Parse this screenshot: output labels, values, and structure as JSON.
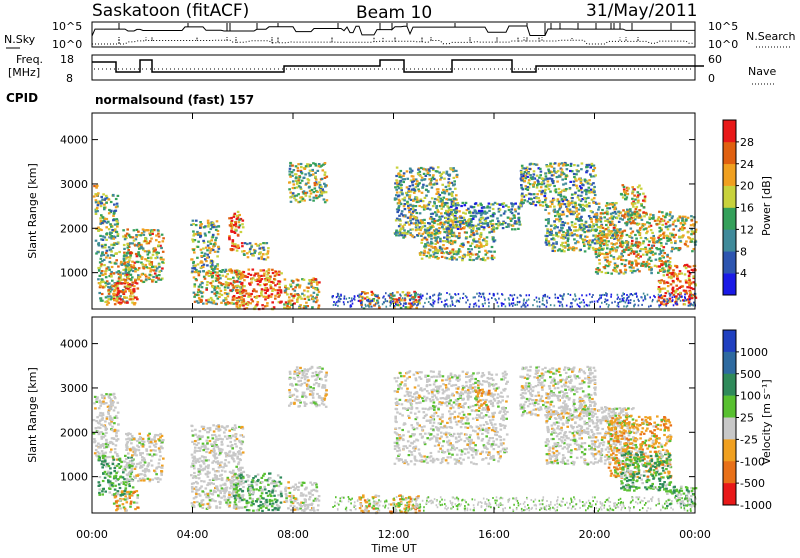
{
  "header": {
    "station": "Saskatoon (fitACF)",
    "beam": "Beam 10",
    "date": "31/May/2011"
  },
  "top_panels": {
    "nsky_label": "N.Sky",
    "nsky_ticks": [
      "10^5",
      "10^0"
    ],
    "nsearch_ticks": [
      "10^5",
      "10^0"
    ],
    "nsearch_label": "N.Search",
    "freq_label_1": "Freq.",
    "freq_label_2": "[MHz]",
    "freq_ticks": [
      "18",
      "8"
    ],
    "nave_ticks": [
      "60",
      "0"
    ],
    "nave_label": "Nave",
    "cpid_label": "CPID",
    "cpid_value": "normalsound (fast) 157"
  },
  "chart_data": [
    {
      "type": "heatmap",
      "title": "",
      "ylabel": "Slant Range [km]",
      "xlabel": "",
      "x_ticks": [
        "00:00",
        "04:00",
        "08:00",
        "12:00",
        "16:00",
        "20:00",
        "00:00"
      ],
      "y_ticks": [
        "1000",
        "2000",
        "3000",
        "4000"
      ],
      "xlim_hours": [
        0,
        24
      ],
      "ylim_km": [
        180,
        4600
      ],
      "colorbar": {
        "label": "Power [dB]",
        "ticks": [
          "4",
          "8",
          "12",
          "16",
          "20",
          "24",
          "28"
        ],
        "colors": [
          "#1a1ae6",
          "#2d55b0",
          "#3f8a9a",
          "#34a05a",
          "#c8d23c",
          "#f0a020",
          "#e06010",
          "#e81818"
        ]
      },
      "scatter_regions": [
        {
          "t0": 0.0,
          "t1": 0.2,
          "r0": 2700,
          "r1": 3050,
          "intensity": 0.6
        },
        {
          "t0": 0.1,
          "t1": 1.0,
          "r0": 1400,
          "r1": 2800,
          "intensity": 0.45
        },
        {
          "t0": 0.2,
          "t1": 1.6,
          "r0": 300,
          "r1": 1500,
          "intensity": 0.55
        },
        {
          "t0": 0.8,
          "t1": 1.8,
          "r0": 300,
          "r1": 800,
          "intensity": 0.9
        },
        {
          "t0": 1.2,
          "t1": 2.8,
          "r0": 800,
          "r1": 2000,
          "intensity": 0.6
        },
        {
          "t0": 3.9,
          "t1": 5.0,
          "r0": 1000,
          "r1": 2200,
          "intensity": 0.45
        },
        {
          "t0": 4.0,
          "t1": 6.0,
          "r0": 300,
          "r1": 1100,
          "intensity": 0.6
        },
        {
          "t0": 5.4,
          "t1": 6.0,
          "r0": 1500,
          "r1": 2400,
          "intensity": 0.75
        },
        {
          "t0": 5.6,
          "t1": 7.5,
          "r0": 200,
          "r1": 1100,
          "intensity": 0.8
        },
        {
          "t0": 6.0,
          "t1": 7.0,
          "r0": 1300,
          "r1": 1700,
          "intensity": 0.45
        },
        {
          "t0": 7.8,
          "t1": 9.3,
          "r0": 2600,
          "r1": 3500,
          "intensity": 0.5
        },
        {
          "t0": 7.6,
          "t1": 9.0,
          "r0": 200,
          "r1": 900,
          "intensity": 0.6
        },
        {
          "t0": 10.6,
          "t1": 11.4,
          "r0": 200,
          "r1": 600,
          "intensity": 0.65
        },
        {
          "t0": 11.8,
          "t1": 13.0,
          "r0": 200,
          "r1": 600,
          "intensity": 0.7
        },
        {
          "t0": 12.0,
          "t1": 14.5,
          "r0": 1800,
          "r1": 3400,
          "intensity": 0.45
        },
        {
          "t0": 13.0,
          "t1": 16.0,
          "r0": 1300,
          "r1": 2200,
          "intensity": 0.5
        },
        {
          "t0": 14.0,
          "t1": 17.0,
          "r0": 2000,
          "r1": 2600,
          "intensity": 0.35
        },
        {
          "t0": 17.0,
          "t1": 20.0,
          "r0": 2500,
          "r1": 3500,
          "intensity": 0.4
        },
        {
          "t0": 18.0,
          "t1": 21.0,
          "r0": 1500,
          "r1": 2600,
          "intensity": 0.45
        },
        {
          "t0": 20.0,
          "t1": 23.0,
          "r0": 1000,
          "r1": 2400,
          "intensity": 0.6
        },
        {
          "t0": 21.0,
          "t1": 22.0,
          "r0": 2300,
          "r1": 3000,
          "intensity": 0.6
        },
        {
          "t0": 22.5,
          "t1": 24.0,
          "r0": 300,
          "r1": 1200,
          "intensity": 0.8
        },
        {
          "t0": 23.0,
          "t1": 24.0,
          "r0": 1500,
          "r1": 2300,
          "intensity": 0.55
        }
      ]
    },
    {
      "type": "heatmap",
      "title": "",
      "ylabel": "Slant Range [km]",
      "xlabel": "Time UT",
      "x_ticks": [
        "00:00",
        "04:00",
        "08:00",
        "12:00",
        "16:00",
        "20:00",
        "00:00"
      ],
      "y_ticks": [
        "1000",
        "2000",
        "3000",
        "4000"
      ],
      "xlim_hours": [
        0,
        24
      ],
      "ylim_km": [
        180,
        4600
      ],
      "colorbar": {
        "label": "Velocity [m s⁻¹]",
        "ticks": [
          "1000",
          "500",
          "100",
          "25",
          "-25",
          "-100",
          "-500",
          "-1000"
        ],
        "colors": [
          "#2040c0",
          "#2e6aa0",
          "#2f8a5a",
          "#58c030",
          "#c8c8c8",
          "#f0a020",
          "#e87018",
          "#e81818"
        ]
      },
      "scatter_regions": [
        {
          "t0": 0.0,
          "t1": 1.0,
          "r0": 1400,
          "r1": 2900,
          "kind": "gray"
        },
        {
          "t0": 0.2,
          "t1": 1.6,
          "r0": 600,
          "r1": 1500,
          "kind": "green"
        },
        {
          "t0": 0.8,
          "t1": 1.8,
          "r0": 250,
          "r1": 700,
          "kind": "orange"
        },
        {
          "t0": 1.3,
          "t1": 2.8,
          "r0": 900,
          "r1": 2000,
          "kind": "gray"
        },
        {
          "t0": 3.9,
          "t1": 6.0,
          "r0": 300,
          "r1": 2200,
          "kind": "gray"
        },
        {
          "t0": 5.6,
          "t1": 7.5,
          "r0": 250,
          "r1": 1100,
          "kind": "green"
        },
        {
          "t0": 7.8,
          "t1": 9.3,
          "r0": 2600,
          "r1": 3500,
          "kind": "gray"
        },
        {
          "t0": 7.6,
          "t1": 9.0,
          "r0": 250,
          "r1": 900,
          "kind": "gray"
        },
        {
          "t0": 10.6,
          "t1": 11.4,
          "r0": 200,
          "r1": 600,
          "kind": "orange"
        },
        {
          "t0": 11.8,
          "t1": 13.0,
          "r0": 200,
          "r1": 600,
          "kind": "orange"
        },
        {
          "t0": 12.0,
          "t1": 16.5,
          "r0": 1300,
          "r1": 3400,
          "kind": "gray"
        },
        {
          "t0": 15.2,
          "t1": 15.8,
          "r0": 2500,
          "r1": 3000,
          "kind": "orange"
        },
        {
          "t0": 17.0,
          "t1": 20.0,
          "r0": 2400,
          "r1": 3500,
          "kind": "gray"
        },
        {
          "t0": 18.0,
          "t1": 21.5,
          "r0": 1300,
          "r1": 2600,
          "kind": "gray"
        },
        {
          "t0": 20.5,
          "t1": 23.0,
          "r0": 1000,
          "r1": 2400,
          "kind": "orange"
        },
        {
          "t0": 21.0,
          "t1": 23.0,
          "r0": 700,
          "r1": 1600,
          "kind": "green"
        },
        {
          "t0": 22.8,
          "t1": 24.0,
          "r0": 350,
          "r1": 800,
          "kind": "green"
        }
      ]
    }
  ]
}
